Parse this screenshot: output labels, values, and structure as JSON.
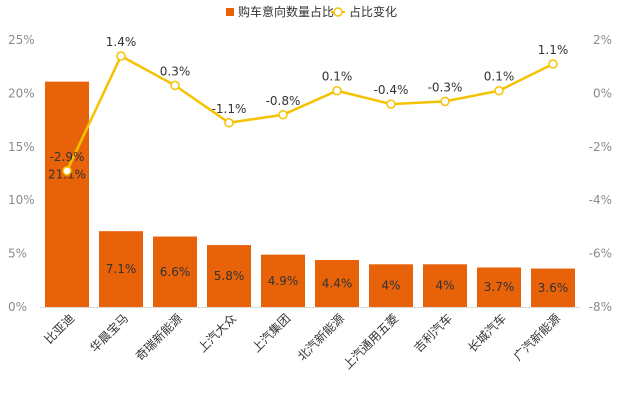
{
  "chart_data": {
    "type": "bar",
    "categories": [
      "比亚迪",
      "华晨宝马",
      "奇瑞新能源",
      "上汽大众",
      "上汽集团",
      "北汽新能源",
      "上汽通用五菱",
      "吉利汽车",
      "长城汽车",
      "广汽新能源"
    ],
    "series": [
      {
        "name": "购车意向数量占比",
        "type": "bar",
        "axis": "left",
        "values": [
          21.1,
          7.1,
          6.6,
          5.8,
          4.9,
          4.4,
          4.0,
          4.0,
          3.7,
          3.6
        ],
        "labels": [
          "21.1%",
          "7.1%",
          "6.6%",
          "5.8%",
          "4.9%",
          "4.4%",
          "4%",
          "4%",
          "3.7%",
          "3.6%"
        ],
        "color": "#E8620A"
      },
      {
        "name": "占比变化",
        "type": "line",
        "axis": "right",
        "values": [
          -2.9,
          1.4,
          0.3,
          -1.1,
          -0.8,
          0.1,
          -0.4,
          -0.3,
          0.1,
          1.1
        ],
        "labels": [
          "-2.9%",
          "1.4%",
          "0.3%",
          "-1.1%",
          "-0.8%",
          "0.1%",
          "-0.4%",
          "-0.3%",
          "0.1%",
          "1.1%"
        ],
        "color": "#F5C200"
      }
    ],
    "y_left": {
      "ylim": [
        0,
        25
      ],
      "ticks": [
        0,
        5,
        10,
        15,
        20,
        25
      ],
      "tick_labels": [
        "0%",
        "5%",
        "10%",
        "15%",
        "20%",
        "25%"
      ]
    },
    "y_right": {
      "ylim": [
        -8,
        2
      ],
      "ticks": [
        -8,
        -6,
        -4,
        -2,
        0,
        2
      ],
      "tick_labels": [
        "-8%",
        "-6%",
        "-4%",
        "-2%",
        "0%",
        "2%"
      ]
    },
    "legend_position": "top-center",
    "grid": false,
    "title": "",
    "xlabel": "",
    "ylabel": ""
  }
}
